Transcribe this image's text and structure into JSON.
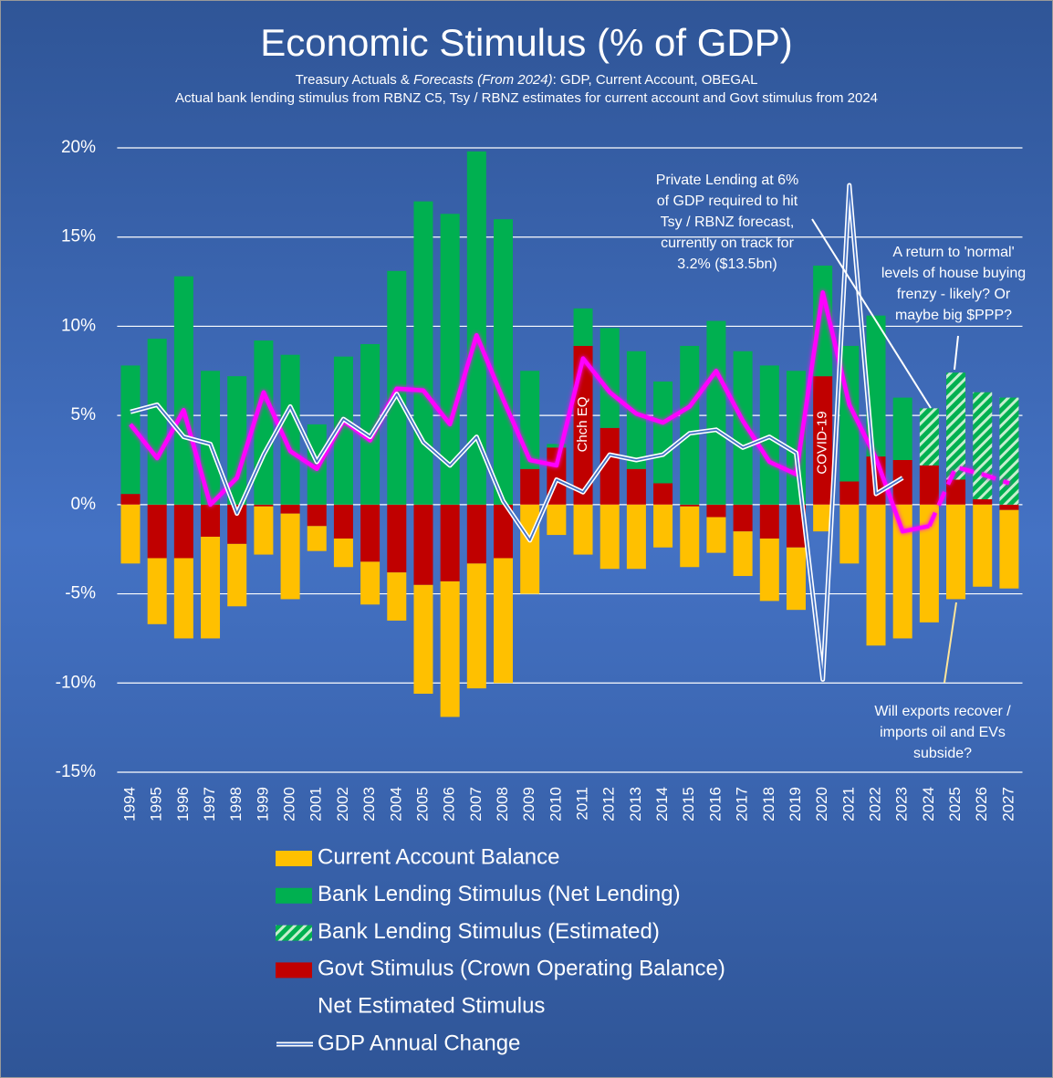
{
  "chart_data": {
    "type": "bar",
    "title": "Economic Stimulus (% of GDP)",
    "subtitle": [
      "Treasury Actuals & ",
      "Forecasts (From 2024)",
      ": GDP, Current Account, OBEGAL"
    ],
    "subtitle2": "Actual bank lending stimulus from RBNZ C5, Tsy / RBNZ estimates for current account and Govt stimulus from 2024",
    "categories": [
      "1994",
      "1995",
      "1996",
      "1997",
      "1998",
      "1999",
      "2000",
      "2001",
      "2002",
      "2003",
      "2004",
      "2005",
      "2006",
      "2007",
      "2008",
      "2009",
      "2010",
      "2011",
      "2012",
      "2013",
      "2014",
      "2015",
      "2016",
      "2017",
      "2018",
      "2019",
      "2020",
      "2021",
      "2022",
      "2023",
      "2024",
      "2025",
      "2026",
      "2027"
    ],
    "ylim": [
      -15,
      20
    ],
    "yticks": [
      {
        "value": -15,
        "label": "-15%"
      },
      {
        "value": -10,
        "label": "-10%"
      },
      {
        "value": -5,
        "label": "-5%"
      },
      {
        "value": 0,
        "label": "0%"
      },
      {
        "value": 5,
        "label": "5%"
      },
      {
        "value": 10,
        "label": "10%"
      },
      {
        "value": 15,
        "label": "15%"
      },
      {
        "value": 20,
        "label": "20%"
      }
    ],
    "grid": true,
    "stacked": true,
    "series": [
      {
        "name": "Current Account Balance",
        "kind": "bar",
        "color": "#ffc000",
        "values": [
          -3.3,
          -3.7,
          -4.5,
          -5.7,
          -3.5,
          -2.7,
          -4.8,
          -1.4,
          -1.6,
          -2.4,
          -2.7,
          -6.1,
          -7.6,
          -7.0,
          -7.0,
          -5.0,
          -1.7,
          -2.8,
          -3.6,
          -3.6,
          -2.4,
          -3.4,
          -2.0,
          -2.5,
          -3.5,
          -3.5,
          -1.5,
          -3.3,
          -7.9,
          -7.5,
          -6.6,
          -5.3,
          -4.6,
          -4.4
        ]
      },
      {
        "name": "Bank Lending Stimulus (Net Lending)",
        "kind": "bar",
        "color": "#00b050",
        "values": [
          7.2,
          9.3,
          12.8,
          7.5,
          7.2,
          9.2,
          8.4,
          4.5,
          8.3,
          9.0,
          13.1,
          17.0,
          16.3,
          19.8,
          16.0,
          5.5,
          0.2,
          2.1,
          5.6,
          6.6,
          5.7,
          8.9,
          10.3,
          8.6,
          7.8,
          7.5,
          6.2,
          7.6,
          7.9,
          3.5,
          null,
          null,
          null,
          null
        ]
      },
      {
        "name": "Bank Lending Stimulus (Estimated)",
        "kind": "bar",
        "color": "#00b050",
        "pattern": "hatch",
        "values": [
          null,
          null,
          null,
          null,
          null,
          null,
          null,
          null,
          null,
          null,
          null,
          null,
          null,
          null,
          null,
          null,
          null,
          null,
          null,
          null,
          null,
          null,
          null,
          null,
          null,
          null,
          null,
          null,
          null,
          null,
          3.2,
          6.0,
          6.0,
          6.0
        ]
      },
      {
        "name": "Govt Stimulus (Crown Operating Balance)",
        "kind": "bar",
        "color": "#c00000",
        "values": [
          0.6,
          -3.0,
          -3.0,
          -1.8,
          -2.2,
          -0.1,
          -0.5,
          -1.2,
          -1.9,
          -3.2,
          -3.8,
          -4.5,
          -4.3,
          -3.3,
          -3.0,
          2.0,
          3.2,
          8.9,
          4.3,
          2.0,
          1.2,
          -0.1,
          -0.7,
          -1.5,
          -1.9,
          -2.4,
          7.2,
          1.3,
          2.7,
          2.5,
          2.2,
          1.4,
          0.3,
          -0.3
        ]
      },
      {
        "name": "Net Estimated Stimulus",
        "kind": "line",
        "color": "#ff00ff",
        "dashed_from": "2024",
        "values": [
          4.5,
          2.6,
          5.3,
          0.0,
          1.5,
          6.3,
          3.0,
          2.0,
          4.7,
          3.6,
          6.5,
          6.4,
          4.5,
          9.5,
          5.9,
          2.5,
          2.2,
          8.2,
          6.3,
          5.1,
          4.6,
          5.5,
          7.5,
          4.7,
          2.4,
          1.7,
          11.9,
          5.6,
          2.6,
          -1.5,
          -1.2,
          2.1,
          1.7,
          1.2
        ]
      },
      {
        "name": "GDP Annual Change",
        "kind": "line",
        "color": "#ffffff",
        "outline": true,
        "values": [
          5.2,
          5.6,
          3.8,
          3.4,
          -0.5,
          2.8,
          5.5,
          2.4,
          4.8,
          3.8,
          6.2,
          3.5,
          2.2,
          3.8,
          0.2,
          -2.0,
          1.4,
          0.7,
          2.8,
          2.5,
          2.8,
          4.0,
          4.2,
          3.2,
          3.8,
          2.9,
          -9.8,
          17.9,
          0.6,
          1.5,
          null,
          null,
          null,
          null
        ]
      }
    ],
    "annotations": [
      {
        "text": "Chch EQ",
        "category": "2011"
      },
      {
        "text": "COVID-19",
        "category": "2020"
      }
    ],
    "callouts": [
      {
        "lines": [
          "Private Lending at 6%",
          "of GDP required to hit",
          "Tsy / RBNZ forecast,",
          "currently on track for",
          "3.2% ($13.5bn)"
        ]
      },
      {
        "lines": [
          "A return to 'normal'",
          "levels of house buying",
          "frenzy - likely? Or",
          "maybe big $PPP?"
        ]
      },
      {
        "lines": [
          "Will exports recover /",
          "imports oil and EVs",
          "subside?"
        ]
      }
    ]
  }
}
